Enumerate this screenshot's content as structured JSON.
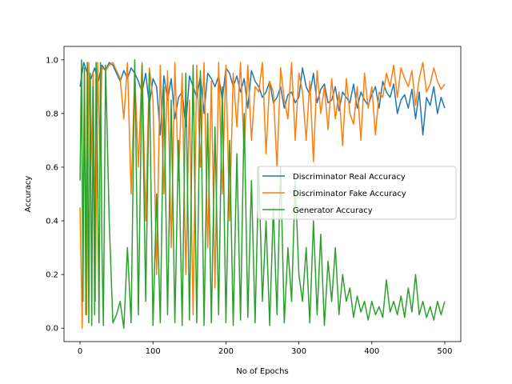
{
  "chart_data": {
    "type": "line",
    "title": "",
    "xlabel": "No of Epochs",
    "ylabel": "Accuracy",
    "xlim": [
      -22,
      522
    ],
    "ylim": [
      -0.05,
      1.05
    ],
    "x_ticks": [
      0,
      100,
      200,
      300,
      400,
      500
    ],
    "y_ticks": [
      0.0,
      0.2,
      0.4,
      0.6,
      0.8,
      1.0
    ],
    "x_tick_labels": [
      "0",
      "100",
      "200",
      "300",
      "400",
      "500"
    ],
    "y_tick_labels": [
      "0.0",
      "0.2",
      "0.4",
      "0.6",
      "0.8",
      "1.0"
    ],
    "grid": false,
    "legend_position": "center-right",
    "series": [
      {
        "name": "Discriminator Real Accuracy",
        "color": "#1f77b4",
        "x": [
          0,
          5,
          10,
          15,
          20,
          25,
          30,
          35,
          40,
          45,
          50,
          55,
          60,
          65,
          70,
          75,
          80,
          85,
          90,
          95,
          100,
          105,
          110,
          115,
          120,
          125,
          130,
          135,
          140,
          145,
          150,
          155,
          160,
          165,
          170,
          175,
          180,
          185,
          190,
          195,
          200,
          205,
          210,
          215,
          220,
          225,
          230,
          235,
          240,
          245,
          250,
          255,
          260,
          265,
          270,
          275,
          280,
          285,
          290,
          295,
          300,
          305,
          310,
          315,
          320,
          325,
          330,
          335,
          340,
          345,
          350,
          355,
          360,
          365,
          370,
          375,
          380,
          385,
          390,
          395,
          400,
          405,
          410,
          415,
          420,
          425,
          430,
          435,
          440,
          445,
          450,
          455,
          460,
          465,
          470,
          475,
          480,
          485,
          490,
          495,
          500
        ],
        "y": [
          0.9,
          0.99,
          0.95,
          0.93,
          0.97,
          0.92,
          0.98,
          0.96,
          0.99,
          0.98,
          0.95,
          0.92,
          0.96,
          0.93,
          0.97,
          0.95,
          0.92,
          0.88,
          0.95,
          0.83,
          0.93,
          0.9,
          0.72,
          0.94,
          0.85,
          0.93,
          0.78,
          0.86,
          0.88,
          0.75,
          0.94,
          0.9,
          0.86,
          0.94,
          0.8,
          0.95,
          0.93,
          0.9,
          0.94,
          0.85,
          0.97,
          0.95,
          0.9,
          0.94,
          0.88,
          0.93,
          0.82,
          0.96,
          0.92,
          0.9,
          0.86,
          0.88,
          0.92,
          0.84,
          0.86,
          0.9,
          0.82,
          0.87,
          0.88,
          0.84,
          0.86,
          0.97,
          0.9,
          0.87,
          0.95,
          0.84,
          0.89,
          0.91,
          0.84,
          0.85,
          0.9,
          0.81,
          0.88,
          0.86,
          0.84,
          0.91,
          0.82,
          0.88,
          0.85,
          0.83,
          0.87,
          0.9,
          0.82,
          0.92,
          0.88,
          0.86,
          0.91,
          0.8,
          0.85,
          0.87,
          0.82,
          0.89,
          0.78,
          0.88,
          0.72,
          0.86,
          0.83,
          0.9,
          0.8,
          0.86,
          0.82
        ]
      },
      {
        "name": "Discriminator Fake Accuracy",
        "color": "#ff7f0e",
        "x": [
          0,
          3,
          6,
          9,
          12,
          15,
          18,
          21,
          24,
          27,
          30,
          35,
          40,
          45,
          50,
          55,
          60,
          65,
          70,
          75,
          80,
          85,
          90,
          95,
          100,
          105,
          110,
          115,
          120,
          125,
          130,
          135,
          140,
          145,
          150,
          155,
          160,
          165,
          170,
          175,
          180,
          185,
          190,
          195,
          200,
          205,
          210,
          215,
          220,
          225,
          230,
          235,
          240,
          245,
          250,
          255,
          260,
          265,
          270,
          275,
          280,
          285,
          290,
          295,
          300,
          305,
          310,
          315,
          320,
          325,
          330,
          335,
          340,
          345,
          350,
          355,
          360,
          365,
          370,
          375,
          380,
          385,
          390,
          395,
          400,
          405,
          410,
          415,
          420,
          425,
          430,
          435,
          440,
          445,
          450,
          455,
          460,
          465,
          470,
          475,
          480,
          485,
          490,
          495,
          500
        ],
        "y": [
          0.45,
          0.0,
          0.95,
          0.05,
          0.99,
          0.6,
          0.95,
          0.1,
          0.99,
          0.65,
          0.97,
          0.96,
          0.98,
          0.99,
          0.96,
          0.93,
          0.78,
          0.99,
          0.5,
          0.95,
          0.6,
          0.99,
          0.4,
          0.97,
          0.85,
          0.2,
          0.98,
          0.5,
          0.96,
          0.3,
          0.99,
          0.55,
          0.95,
          0.2,
          0.85,
          0.05,
          0.98,
          0.6,
          0.99,
          0.3,
          0.92,
          0.15,
          0.99,
          0.5,
          0.98,
          0.4,
          0.95,
          0.75,
          0.99,
          0.65,
          0.98,
          0.7,
          0.9,
          0.88,
          0.99,
          0.65,
          0.92,
          0.88,
          0.6,
          0.97,
          0.85,
          0.78,
          0.99,
          0.7,
          0.95,
          0.88,
          0.7,
          0.92,
          0.62,
          0.96,
          0.8,
          0.9,
          0.74,
          0.93,
          0.78,
          0.88,
          0.68,
          0.93,
          0.8,
          0.76,
          0.9,
          0.7,
          0.95,
          0.82,
          0.9,
          0.72,
          0.88,
          0.86,
          0.95,
          0.9,
          0.98,
          0.86,
          0.97,
          0.93,
          0.9,
          0.96,
          0.83,
          0.93,
          0.99,
          0.88,
          0.91,
          0.97,
          0.92,
          0.89,
          0.91
        ]
      },
      {
        "name": "Generator Accuracy",
        "color": "#2ca02c",
        "x": [
          0,
          2,
          4,
          6,
          8,
          10,
          12,
          14,
          16,
          18,
          20,
          22,
          24,
          26,
          28,
          30,
          32,
          35,
          40,
          45,
          50,
          55,
          60,
          65,
          70,
          75,
          80,
          85,
          90,
          95,
          100,
          105,
          110,
          115,
          120,
          125,
          130,
          135,
          140,
          145,
          150,
          155,
          160,
          165,
          170,
          175,
          180,
          185,
          190,
          195,
          200,
          205,
          210,
          215,
          220,
          225,
          230,
          235,
          240,
          245,
          250,
          255,
          260,
          265,
          270,
          275,
          280,
          285,
          290,
          295,
          300,
          305,
          310,
          315,
          320,
          325,
          330,
          335,
          340,
          345,
          350,
          355,
          360,
          365,
          370,
          375,
          380,
          385,
          390,
          395,
          400,
          405,
          410,
          415,
          420,
          425,
          430,
          435,
          440,
          445,
          450,
          455,
          460,
          465,
          470,
          475,
          480,
          485,
          490,
          495,
          500
        ],
        "y": [
          0.55,
          1.0,
          0.1,
          0.97,
          0.05,
          0.99,
          0.02,
          0.95,
          0.01,
          0.9,
          0.05,
          0.99,
          0.6,
          0.02,
          0.99,
          0.3,
          0.01,
          0.98,
          0.4,
          0.02,
          0.05,
          0.1,
          0.0,
          0.3,
          0.02,
          1.0,
          0.05,
          0.98,
          0.1,
          0.95,
          0.01,
          0.5,
          0.02,
          0.9,
          0.05,
          0.85,
          0.02,
          0.7,
          0.01,
          0.95,
          0.03,
          0.98,
          0.02,
          0.96,
          0.01,
          0.8,
          0.02,
          0.75,
          0.05,
          0.9,
          0.02,
          0.7,
          0.01,
          0.65,
          0.03,
          0.8,
          0.04,
          0.55,
          0.02,
          0.6,
          0.1,
          0.4,
          0.01,
          0.45,
          0.05,
          0.6,
          0.02,
          0.3,
          0.1,
          0.55,
          0.2,
          0.1,
          0.3,
          0.02,
          0.4,
          0.05,
          0.35,
          0.01,
          0.25,
          0.1,
          0.3,
          0.05,
          0.2,
          0.1,
          0.15,
          0.04,
          0.12,
          0.06,
          0.1,
          0.03,
          0.1,
          0.05,
          0.08,
          0.04,
          0.18,
          0.06,
          0.1,
          0.05,
          0.12,
          0.04,
          0.15,
          0.06,
          0.2,
          0.05,
          0.1,
          0.04,
          0.08,
          0.03,
          0.1,
          0.05,
          0.1
        ]
      }
    ]
  }
}
